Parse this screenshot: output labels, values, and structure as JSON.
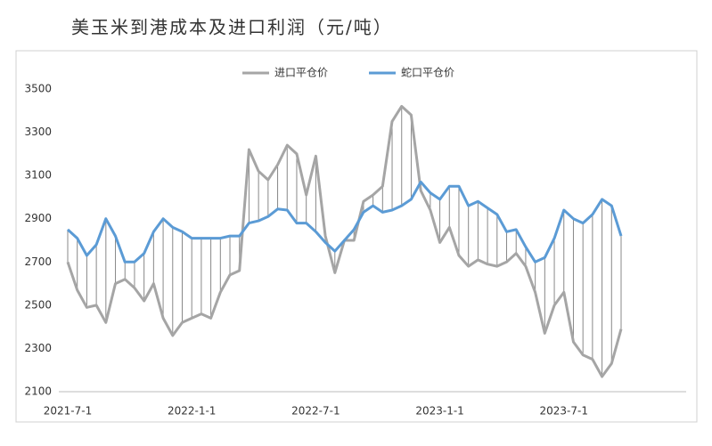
{
  "chart_data": {
    "type": "line",
    "title": "美玉米到港成本及进口利润（元/吨）",
    "categories": [
      "2021-7-1",
      null,
      null,
      null,
      null,
      null,
      null,
      null,
      null,
      null,
      null,
      null,
      null,
      "2022-1-1",
      null,
      null,
      null,
      null,
      null,
      null,
      null,
      null,
      null,
      null,
      null,
      null,
      "2022-7-1",
      null,
      null,
      null,
      null,
      null,
      null,
      null,
      null,
      null,
      null,
      null,
      null,
      "2023-1-1",
      null,
      null,
      null,
      null,
      null,
      null,
      null,
      null,
      null,
      null,
      null,
      null,
      "2023-7-1",
      null,
      null,
      null,
      null,
      null,
      null
    ],
    "series": [
      {
        "name": "进口平仓价",
        "color": "#a5a5a5",
        "values": [
          2700,
          2570,
          2490,
          2500,
          2420,
          2600,
          2620,
          2580,
          2520,
          2600,
          2440,
          2360,
          2420,
          2440,
          2460,
          2440,
          2560,
          2640,
          2660,
          3220,
          3120,
          3080,
          3150,
          3240,
          3200,
          3010,
          3190,
          2820,
          2650,
          2800,
          2800,
          2980,
          3010,
          3050,
          3350,
          3420,
          3380,
          3030,
          2940,
          2790,
          2860,
          2730,
          2680,
          2710,
          2690,
          2680,
          2700,
          2740,
          2680,
          2560,
          2370,
          2500,
          2560,
          2330,
          2270,
          2250,
          2170,
          2230,
          2390
        ]
      },
      {
        "name": "蛇口平仓价",
        "color": "#5b9bd5",
        "values": [
          2850,
          2810,
          2730,
          2780,
          2900,
          2820,
          2700,
          2700,
          2740,
          2840,
          2900,
          2860,
          2840,
          2810,
          2810,
          2810,
          2810,
          2820,
          2820,
          2880,
          2890,
          2910,
          2945,
          2940,
          2880,
          2880,
          2840,
          2790,
          2750,
          2800,
          2850,
          2930,
          2960,
          2930,
          2940,
          2960,
          2990,
          3070,
          3020,
          2990,
          3050,
          3050,
          2960,
          2980,
          2950,
          2920,
          2840,
          2850,
          2770,
          2700,
          2720,
          2810,
          2940,
          2900,
          2880,
          2920,
          2990,
          2960,
          2820
        ]
      }
    ],
    "ylim": [
      2100,
      3500
    ],
    "yticks": [
      2100,
      2300,
      2500,
      2700,
      2900,
      3100,
      3300,
      3500
    ],
    "grid": false,
    "legend": "top"
  }
}
